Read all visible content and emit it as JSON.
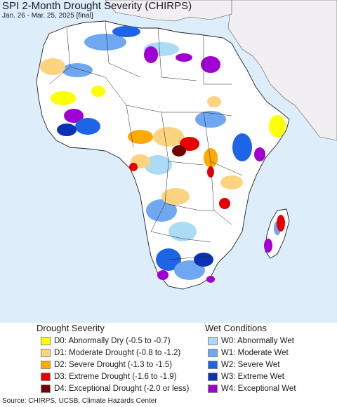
{
  "title": "SPI 2-Month Drought Severity (CHIRPS)",
  "subtitle": "Jan. 26 - Mar. 25, 2025 [final]",
  "legend": {
    "drought_title": "Drought Severity",
    "wet_title": "Wet Conditions",
    "drought": [
      {
        "label": "D0: Abnormally Dry (-0.5 to -0.7)",
        "color": "#ffff00"
      },
      {
        "label": "D1: Moderate Drought (-0.8 to -1.2)",
        "color": "#fcd37f"
      },
      {
        "label": "D2: Severe Drought (-1.3 to -1.5)",
        "color": "#ffaa00"
      },
      {
        "label": "D3: Extreme Drought (-1.6 to -1.9)",
        "color": "#e60000"
      },
      {
        "label": "D4: Exceptional Drought (-2.0 or less)",
        "color": "#730000"
      }
    ],
    "wet": [
      {
        "label": "W0: Abnormally Wet",
        "color": "#aadcf5"
      },
      {
        "label": "W1: Moderate Wet",
        "color": "#6fa8f0"
      },
      {
        "label": "W2: Severe Wet",
        "color": "#1e64e6"
      },
      {
        "label": "W3: Extreme Wet",
        "color": "#0a32b4"
      },
      {
        "label": "W4: Exceptional Wet",
        "color": "#a000d2"
      }
    ]
  },
  "source": "Source: CHIRPS, UCSB, Climate Hazards Center",
  "colors": {
    "ocean": "#ddeefa",
    "land_normal": "#ffffff",
    "outside_land": "#f2eff2",
    "border": "#222222"
  }
}
